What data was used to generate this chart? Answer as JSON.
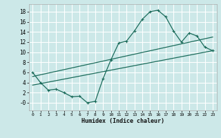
{
  "bg_color": "#cce8e8",
  "grid_color": "#ffffff",
  "line_color": "#1a6b5a",
  "xlabel": "Humidex (Indice chaleur)",
  "xlim": [
    -0.5,
    23.5
  ],
  "ylim": [
    -1.5,
    19.5
  ],
  "yticks": [
    0,
    2,
    4,
    6,
    8,
    10,
    12,
    14,
    16,
    18
  ],
  "ytick_labels": [
    "-0",
    "2",
    "4",
    "6",
    "8",
    "10",
    "12",
    "14",
    "16",
    "18"
  ],
  "xticks": [
    0,
    1,
    2,
    3,
    4,
    5,
    6,
    7,
    8,
    9,
    10,
    11,
    12,
    13,
    14,
    15,
    16,
    17,
    18,
    19,
    20,
    21,
    22,
    23
  ],
  "curve1_x": [
    0,
    1,
    2,
    3,
    4,
    5,
    6,
    7,
    8,
    9,
    10,
    11,
    12,
    13,
    14,
    15,
    16,
    17,
    18,
    19,
    20,
    21,
    22,
    23
  ],
  "curve1_y": [
    6.0,
    4.0,
    2.5,
    2.7,
    2.0,
    1.2,
    1.3,
    0.0,
    0.3,
    4.8,
    8.5,
    11.8,
    12.2,
    14.2,
    16.5,
    18.0,
    18.3,
    17.0,
    14.2,
    12.0,
    13.8,
    13.2,
    11.0,
    10.3
  ],
  "line2_x": [
    0,
    23
  ],
  "line2_y": [
    3.5,
    10.3
  ],
  "line3_x": [
    0,
    23
  ],
  "line3_y": [
    5.2,
    13.0
  ]
}
